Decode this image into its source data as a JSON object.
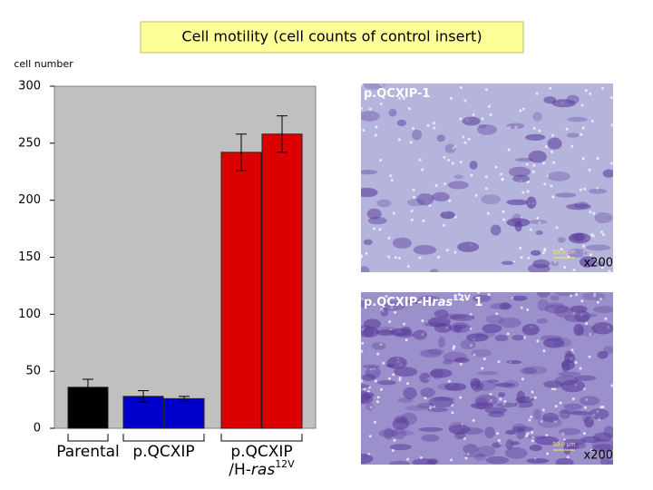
{
  "chart_data": {
    "type": "bar",
    "title": "Cell motility (cell counts of control insert)",
    "y_label": "cell number",
    "ylim": [
      0,
      300
    ],
    "yticks": [
      0,
      50,
      100,
      150,
      200,
      250,
      300
    ],
    "groups": [
      {
        "label": [
          [
            "Parental"
          ]
        ],
        "color": "#000000",
        "values": [
          36
        ],
        "errors": [
          7
        ]
      },
      {
        "label": [
          [
            "p.QCXIP"
          ]
        ],
        "color": "#0000cc",
        "values": [
          28,
          26
        ],
        "errors": [
          5,
          2
        ]
      },
      {
        "label": [
          [
            "p.QCXIP"
          ],
          [
            "/H-",
            "ras",
            "12V"
          ]
        ],
        "color": "#dd0000",
        "values": [
          242,
          258
        ],
        "errors": [
          16,
          16
        ]
      }
    ]
  },
  "images": [
    {
      "label": [
        "p.QCXIP-1"
      ],
      "scale": "50.0 μm",
      "magnification": "x200"
    },
    {
      "label": [
        "p.QCXIP-H",
        "ras",
        "12V",
        " 1"
      ],
      "scale": "50.0 μm",
      "magnification": "x200"
    }
  ]
}
